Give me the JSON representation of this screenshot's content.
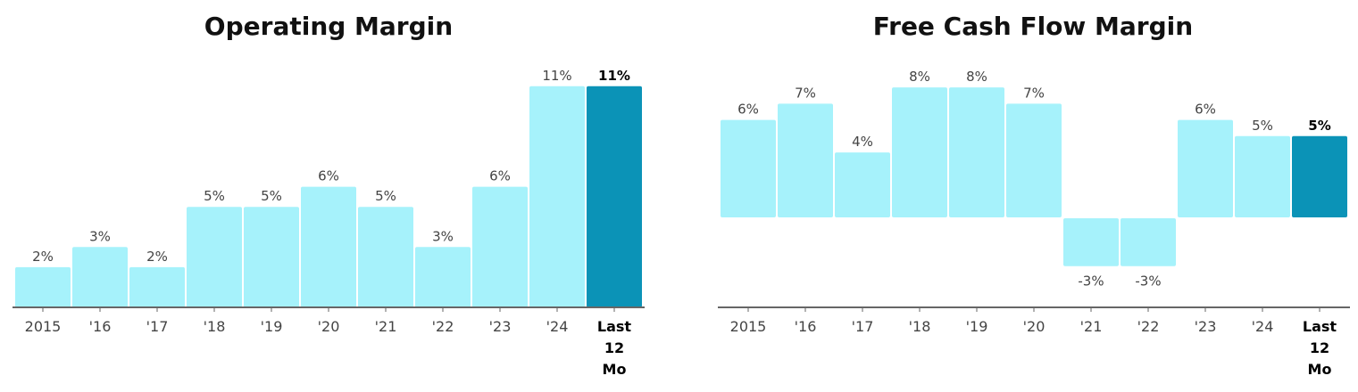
{
  "chart_data": [
    {
      "type": "bar",
      "title": "Operating Margin",
      "categories": [
        "2015",
        "'16",
        "'17",
        "'18",
        "'19",
        "'20",
        "'21",
        "'22",
        "'23",
        "'24",
        "Last 12 Mo"
      ],
      "values": [
        2,
        3,
        2,
        5,
        5,
        6,
        5,
        3,
        6,
        11,
        11
      ],
      "value_labels": [
        "2%",
        "3%",
        "2%",
        "5%",
        "5%",
        "6%",
        "5%",
        "3%",
        "6%",
        "11%",
        "11%"
      ],
      "unit": "%",
      "highlight_index": 10,
      "ylim": [
        0,
        11.3
      ],
      "colors": {
        "bar": "#a6f2fb",
        "highlight": "#0b93b7",
        "axis": "#666666"
      },
      "grid": false
    },
    {
      "type": "bar",
      "title": "Free Cash Flow Margin",
      "categories": [
        "2015",
        "'16",
        "'17",
        "'18",
        "'19",
        "'20",
        "'21",
        "'22",
        "'23",
        "'24",
        "Last 12 Mo"
      ],
      "values": [
        6,
        7,
        4,
        8,
        8,
        7,
        -3,
        -3,
        6,
        5,
        5
      ],
      "value_labels": [
        "6%",
        "7%",
        "4%",
        "8%",
        "8%",
        "7%",
        "-3%",
        "-3%",
        "6%",
        "5%",
        "5%"
      ],
      "unit": "%",
      "highlight_index": 10,
      "ylim": [
        -5,
        8.5
      ],
      "colors": {
        "bar": "#a6f2fb",
        "highlight": "#0b93b7",
        "axis": "#666666"
      },
      "grid": false
    }
  ]
}
